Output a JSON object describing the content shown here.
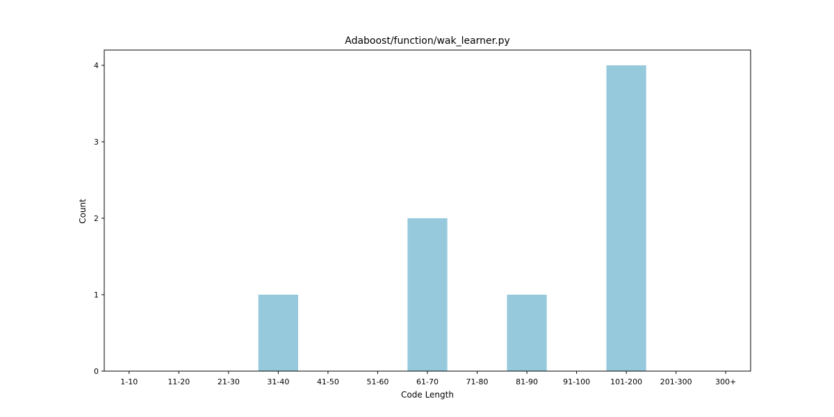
{
  "chart_data": {
    "type": "bar",
    "title": "Adaboost/function/wak_learner.py",
    "xlabel": "Code Length",
    "ylabel": "Count",
    "categories": [
      "1-10",
      "11-20",
      "21-30",
      "31-40",
      "41-50",
      "51-60",
      "61-70",
      "71-80",
      "81-90",
      "91-100",
      "101-200",
      "201-300",
      "300+"
    ],
    "values": [
      0,
      0,
      0,
      1,
      0,
      0,
      2,
      0,
      1,
      0,
      4,
      0,
      0
    ],
    "ylim": [
      0,
      4.2
    ],
    "yticks": [
      0,
      1,
      2,
      3,
      4
    ],
    "grid": false,
    "legend": "none",
    "colors": {
      "bar": "#96c9dc",
      "axes": "#000000",
      "background": "#ffffff"
    }
  }
}
